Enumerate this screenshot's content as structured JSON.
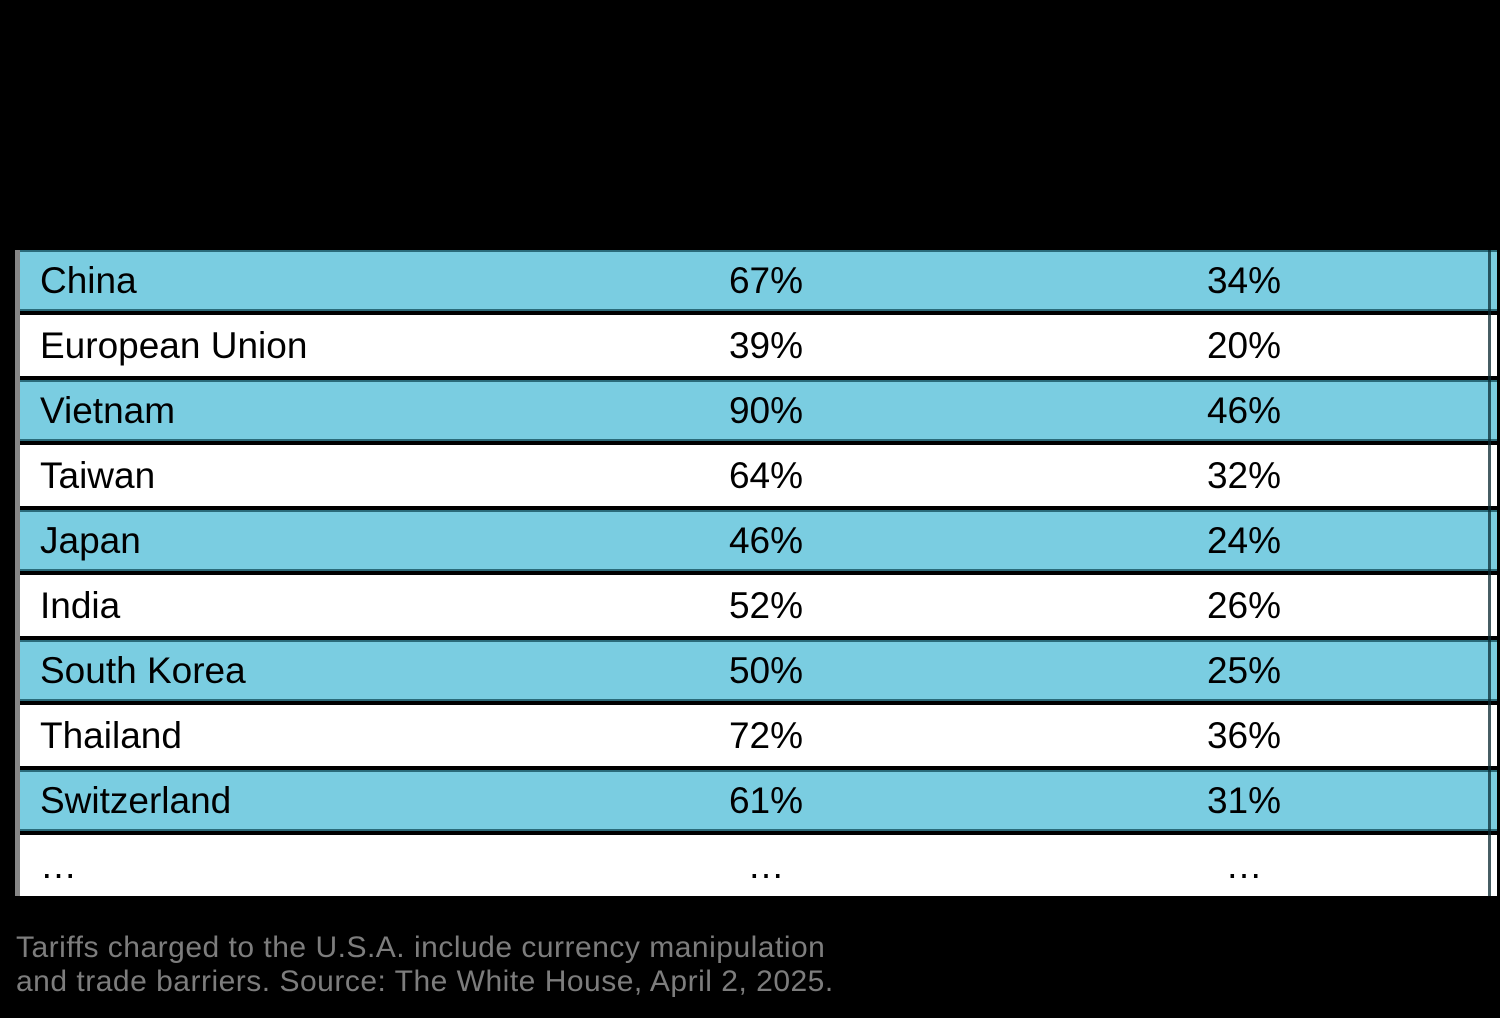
{
  "page": {
    "background_color": "#000000",
    "note": "top band and title area are solid black; no visible header text"
  },
  "table": {
    "row_color_odd": "#7ACDE1",
    "row_color_even": "#FFFFFF",
    "row_border_color": "#2B6B7A",
    "left_rule_color": "#868686",
    "text_color": "#000000",
    "rows": [
      {
        "country": "China",
        "col2": "67%",
        "col3": "34%"
      },
      {
        "country": "European Union",
        "col2": "39%",
        "col3": "20%"
      },
      {
        "country": "Vietnam",
        "col2": "90%",
        "col3": "46%"
      },
      {
        "country": "Taiwan",
        "col2": "64%",
        "col3": "32%"
      },
      {
        "country": "Japan",
        "col2": "46%",
        "col3": "24%"
      },
      {
        "country": "India",
        "col2": "52%",
        "col3": "26%"
      },
      {
        "country": "South Korea",
        "col2": "50%",
        "col3": "25%"
      },
      {
        "country": "Thailand",
        "col2": "72%",
        "col3": "36%"
      },
      {
        "country": "Switzerland",
        "col2": "61%",
        "col3": "31%"
      },
      {
        "country": "…",
        "col2": "…",
        "col3": "…"
      }
    ]
  },
  "footnote": {
    "color": "#7D7D7D",
    "line1": "Tariffs charged to the U.S.A. include currency manipulation",
    "line2": "and trade barriers. Source: The White House, April 2, 2025."
  },
  "chart_data": {
    "type": "table",
    "title": "",
    "categories": [
      "China",
      "European Union",
      "Vietnam",
      "Taiwan",
      "Japan",
      "India",
      "South Korea",
      "Thailand",
      "Switzerland"
    ],
    "series": [
      {
        "name": "percent_column_1",
        "values": [
          67,
          39,
          90,
          64,
          46,
          52,
          50,
          72,
          61
        ]
      },
      {
        "name": "percent_column_2",
        "values": [
          34,
          20,
          46,
          32,
          24,
          26,
          25,
          36,
          31
        ]
      }
    ],
    "has_ellipsis_continuation_row": true,
    "legend_position": "none",
    "grid": false
  }
}
